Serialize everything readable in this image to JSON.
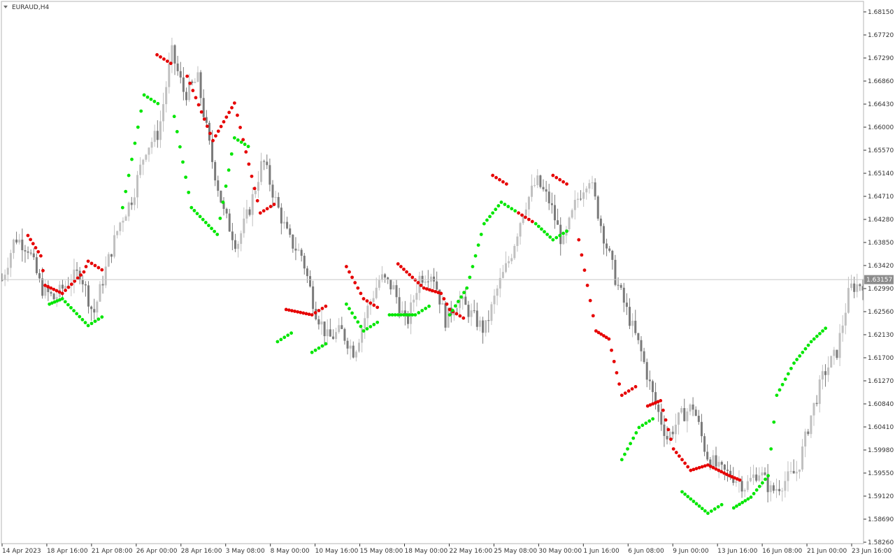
{
  "symbol": "EURAUD,H4",
  "current_price_label": "1.63157",
  "colors": {
    "background": "#ffffff",
    "frame": "#b4b4b4",
    "candle_up": "#c0c0c0",
    "candle_down": "#7a7a7a",
    "sar_above": "#e60000",
    "sar_below": "#00e600",
    "price_line": "#c8c8c8",
    "price_tag": "#8c8c8c"
  },
  "chart_data": {
    "type": "candlestick",
    "indicator": "Parabolic SAR",
    "ylim": [
      1.5826,
      1.6815
    ],
    "y_ticks": [
      "1.68150",
      "1.67720",
      "1.67290",
      "1.66860",
      "1.66430",
      "1.66000",
      "1.65570",
      "1.65140",
      "1.64710",
      "1.64280",
      "1.63850",
      "1.63420",
      "1.62990",
      "1.62560",
      "1.62130",
      "1.61700",
      "1.61270",
      "1.60840",
      "1.60410",
      "1.59980",
      "1.59550",
      "1.59120",
      "1.58690",
      "1.58260"
    ],
    "x_ticks": [
      "14 Apr 2023",
      "18 Apr 16:00",
      "21 Apr 08:00",
      "26 Apr 00:00",
      "28 Apr 16:00",
      "3 May 08:00",
      "8 May 00:00",
      "10 May 16:00",
      "15 May 08:00",
      "18 May 00:00",
      "22 May 16:00",
      "25 May 08:00",
      "30 May 00:00",
      "1 Jun 16:00",
      "6 Jun 08:00",
      "9 Jun 00:00",
      "13 Jun 16:00",
      "16 Jun 08:00",
      "21 Jun 00:00",
      "23 Jun 16:00"
    ],
    "close_path": [
      1.6315,
      1.6395,
      1.6375,
      1.63,
      1.628,
      1.631,
      1.633,
      1.625,
      1.634,
      1.642,
      1.647,
      1.656,
      1.659,
      1.674,
      1.666,
      1.669,
      1.655,
      1.644,
      1.638,
      1.645,
      1.654,
      1.646,
      1.639,
      1.636,
      1.626,
      1.6205,
      1.622,
      1.618,
      1.626,
      1.632,
      1.63,
      1.623,
      1.632,
      1.633,
      1.624,
      1.628,
      1.625,
      1.622,
      1.63,
      1.636,
      1.645,
      1.65,
      1.646,
      1.638,
      1.646,
      1.651,
      1.641,
      1.632,
      1.625,
      1.618,
      1.609,
      1.602,
      1.606,
      1.608,
      1.599,
      1.596,
      1.595,
      1.593,
      1.596,
      1.592,
      1.594,
      1.596,
      1.606,
      1.614,
      1.618,
      1.63,
      1.631
    ],
    "sar_above_path": [
      [
        0.03,
        1.6398
      ],
      [
        0.045,
        1.636
      ],
      [
        0.05,
        1.6305
      ],
      [
        0.07,
        1.629
      ],
      [
        0.095,
        1.633
      ],
      [
        0.1,
        1.635
      ],
      [
        0.18,
        1.6735
      ],
      [
        0.215,
        1.6695
      ],
      [
        0.245,
        1.6575
      ],
      [
        0.27,
        1.6645
      ],
      [
        0.3,
        1.644
      ],
      [
        0.33,
        1.626
      ],
      [
        0.36,
        1.625
      ],
      [
        0.4,
        1.634
      ],
      [
        0.42,
        1.628
      ],
      [
        0.46,
        1.6345
      ],
      [
        0.49,
        1.63
      ],
      [
        0.51,
        1.629
      ],
      [
        0.52,
        1.626
      ],
      [
        0.57,
        1.651
      ],
      [
        0.6,
        1.644
      ],
      [
        0.64,
        1.651
      ],
      [
        0.67,
        1.639
      ],
      [
        0.69,
        1.622
      ],
      [
        0.705,
        1.6205
      ],
      [
        0.72,
        1.61
      ],
      [
        0.75,
        1.608
      ],
      [
        0.765,
        1.609
      ],
      [
        0.78,
        1.6
      ],
      [
        0.8,
        1.596
      ],
      [
        0.82,
        1.597
      ],
      [
        0.845,
        1.595
      ],
      [
        0.86,
        1.594
      ]
    ],
    "sar_below_path": [
      [
        0.055,
        1.627
      ],
      [
        0.07,
        1.628
      ],
      [
        0.1,
        1.623
      ],
      [
        0.14,
        1.645
      ],
      [
        0.165,
        1.666
      ],
      [
        0.2,
        1.662
      ],
      [
        0.22,
        1.645
      ],
      [
        0.25,
        1.64
      ],
      [
        0.27,
        1.658
      ],
      [
        0.32,
        1.62
      ],
      [
        0.36,
        1.618
      ],
      [
        0.4,
        1.627
      ],
      [
        0.42,
        1.622
      ],
      [
        0.45,
        1.625
      ],
      [
        0.48,
        1.625
      ],
      [
        0.52,
        1.625
      ],
      [
        0.54,
        1.63
      ],
      [
        0.56,
        1.642
      ],
      [
        0.58,
        1.646
      ],
      [
        0.62,
        1.642
      ],
      [
        0.64,
        1.639
      ],
      [
        0.72,
        1.598
      ],
      [
        0.74,
        1.604
      ],
      [
        0.79,
        1.592
      ],
      [
        0.82,
        1.588
      ],
      [
        0.85,
        1.589
      ],
      [
        0.87,
        1.591
      ],
      [
        0.89,
        1.595
      ],
      [
        0.9,
        1.61
      ],
      [
        0.92,
        1.616
      ],
      [
        0.94,
        1.62
      ],
      [
        0.96,
        1.623
      ]
    ]
  }
}
